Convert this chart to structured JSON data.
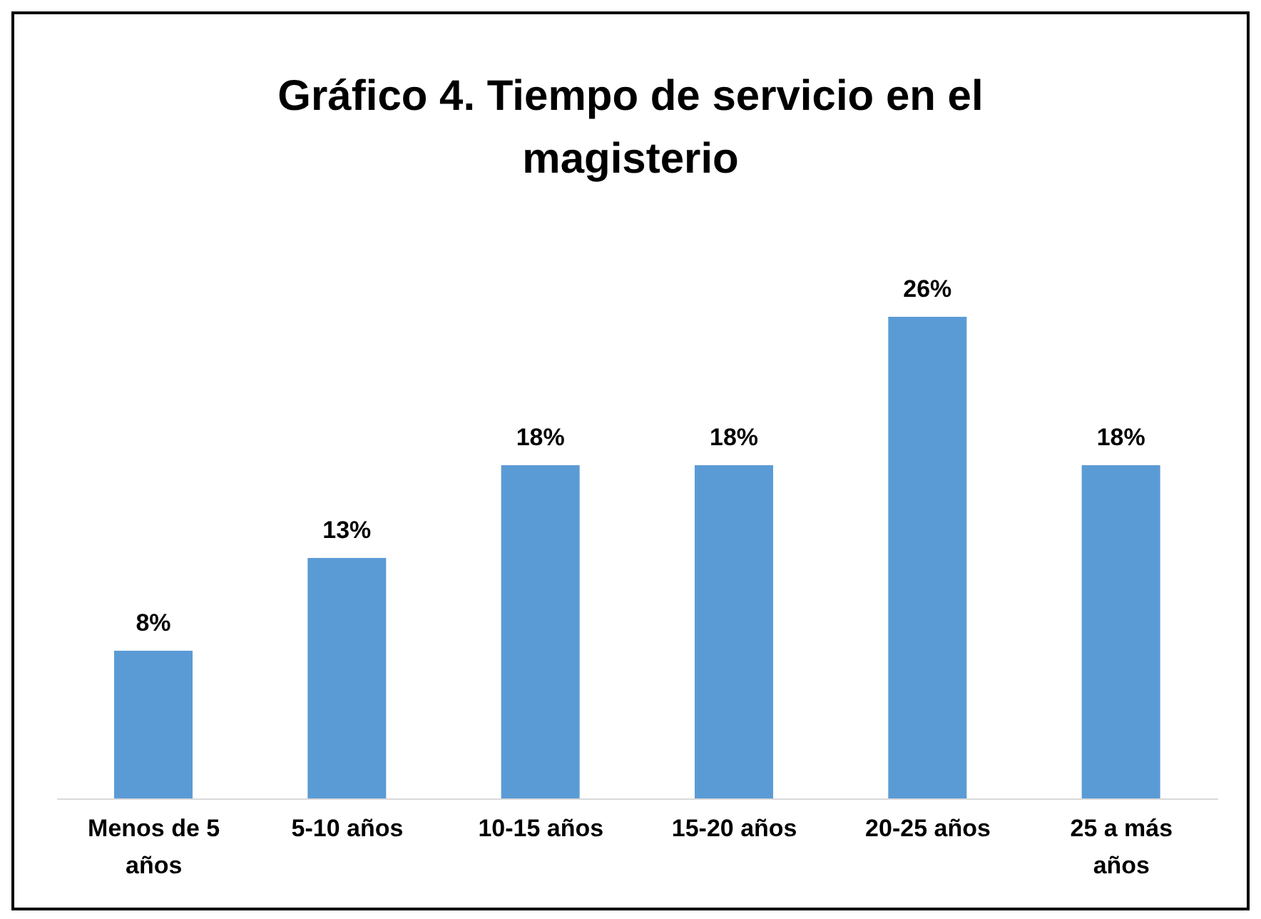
{
  "chart_data": {
    "type": "bar",
    "title": "Gráfico 4. Tiempo de servicio en el magisterio",
    "categories": [
      "Menos de 5 años",
      "5-10 años",
      "10-15 años",
      "15-20 años",
      "20-25 años",
      "25 a más años"
    ],
    "values": [
      8,
      13,
      18,
      18,
      26,
      18
    ],
    "value_labels": [
      "8%",
      "13%",
      "18%",
      "18%",
      "26%",
      "18%"
    ],
    "color": "#5b9bd5",
    "grid": false,
    "legend": false
  }
}
